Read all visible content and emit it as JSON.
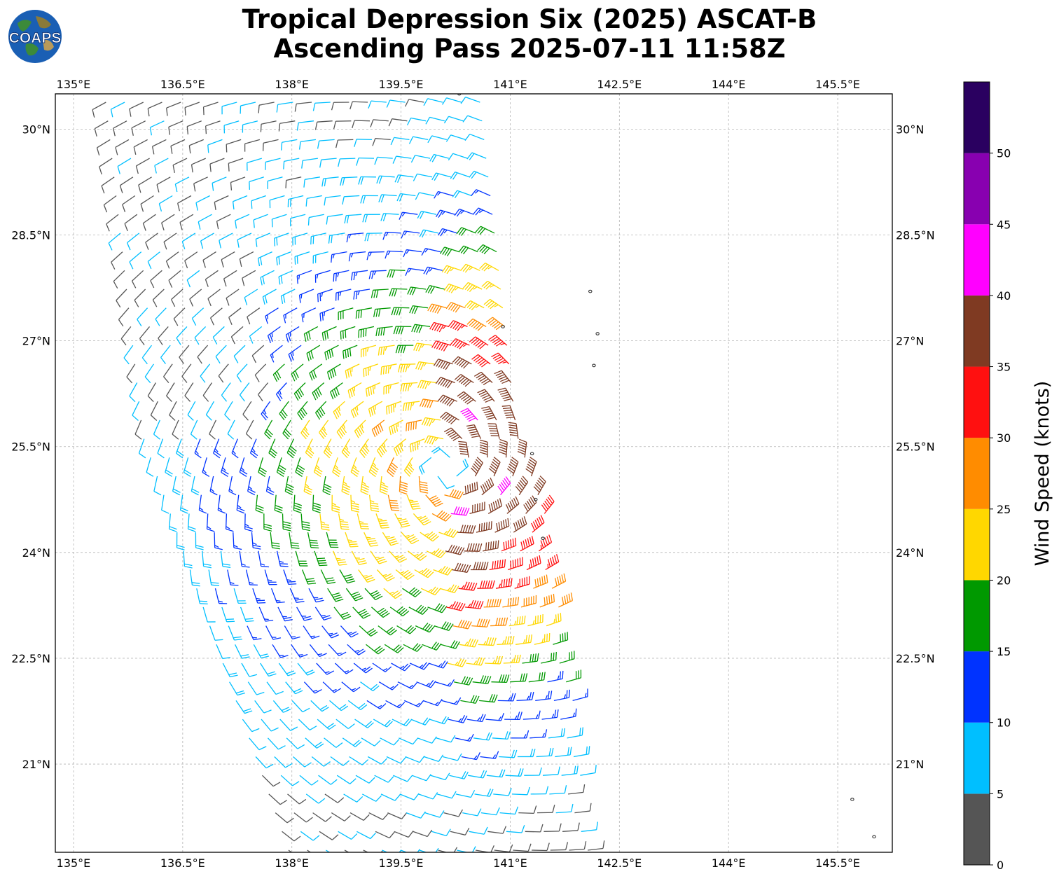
{
  "title": {
    "line1": "Tropical Depression Six (2025) ASCAT-B",
    "line2": "Ascending Pass 2025-07-11 11:58Z"
  },
  "logo": {
    "text": "COAPS",
    "icon": "globe-logo"
  },
  "map": {
    "lon_range": [
      134.75,
      146.25
    ],
    "lat_range": [
      19.75,
      30.5
    ],
    "lon_ticks": [
      "135°E",
      "136.5°E",
      "138°E",
      "139.5°E",
      "141°E",
      "142.5°E",
      "144°E",
      "145.5°E"
    ],
    "lat_ticks": [
      "30°N",
      "28.5°N",
      "27°N",
      "25.5°N",
      "24°N",
      "22.5°N",
      "21°N"
    ],
    "grid": true,
    "storm_center": {
      "lon": 140.1,
      "lat": 25.2
    },
    "swath_lon_bounds": "approx 135.0–142.0 E",
    "islands": [
      {
        "lon": 141.3,
        "lat": 25.4
      },
      {
        "lon": 141.35,
        "lat": 24.75
      },
      {
        "lon": 141.45,
        "lat": 24.2
      },
      {
        "lon": 142.15,
        "lat": 26.65
      },
      {
        "lon": 142.2,
        "lat": 27.1
      },
      {
        "lon": 142.1,
        "lat": 27.7
      },
      {
        "lon": 140.9,
        "lat": 27.2
      },
      {
        "lon": 140.3,
        "lat": 30.5
      },
      {
        "lon": 145.7,
        "lat": 20.5
      },
      {
        "lon": 146.0,
        "lat": 19.97
      }
    ]
  },
  "colorbar": {
    "label": "Wind Speed (knots)",
    "ticks": [
      "0",
      "5",
      "10",
      "15",
      "20",
      "25",
      "30",
      "35",
      "40",
      "45",
      "50"
    ],
    "colors": [
      "#555555",
      "#00bfff",
      "#0033ff",
      "#009900",
      "#ffd700",
      "#ff8c00",
      "#ff1010",
      "#7f3a22",
      "#ff00ff",
      "#8800b0",
      "#2a0060"
    ],
    "bins": [
      0,
      5,
      10,
      15,
      20,
      25,
      30,
      35,
      40,
      45,
      50,
      55
    ]
  }
}
